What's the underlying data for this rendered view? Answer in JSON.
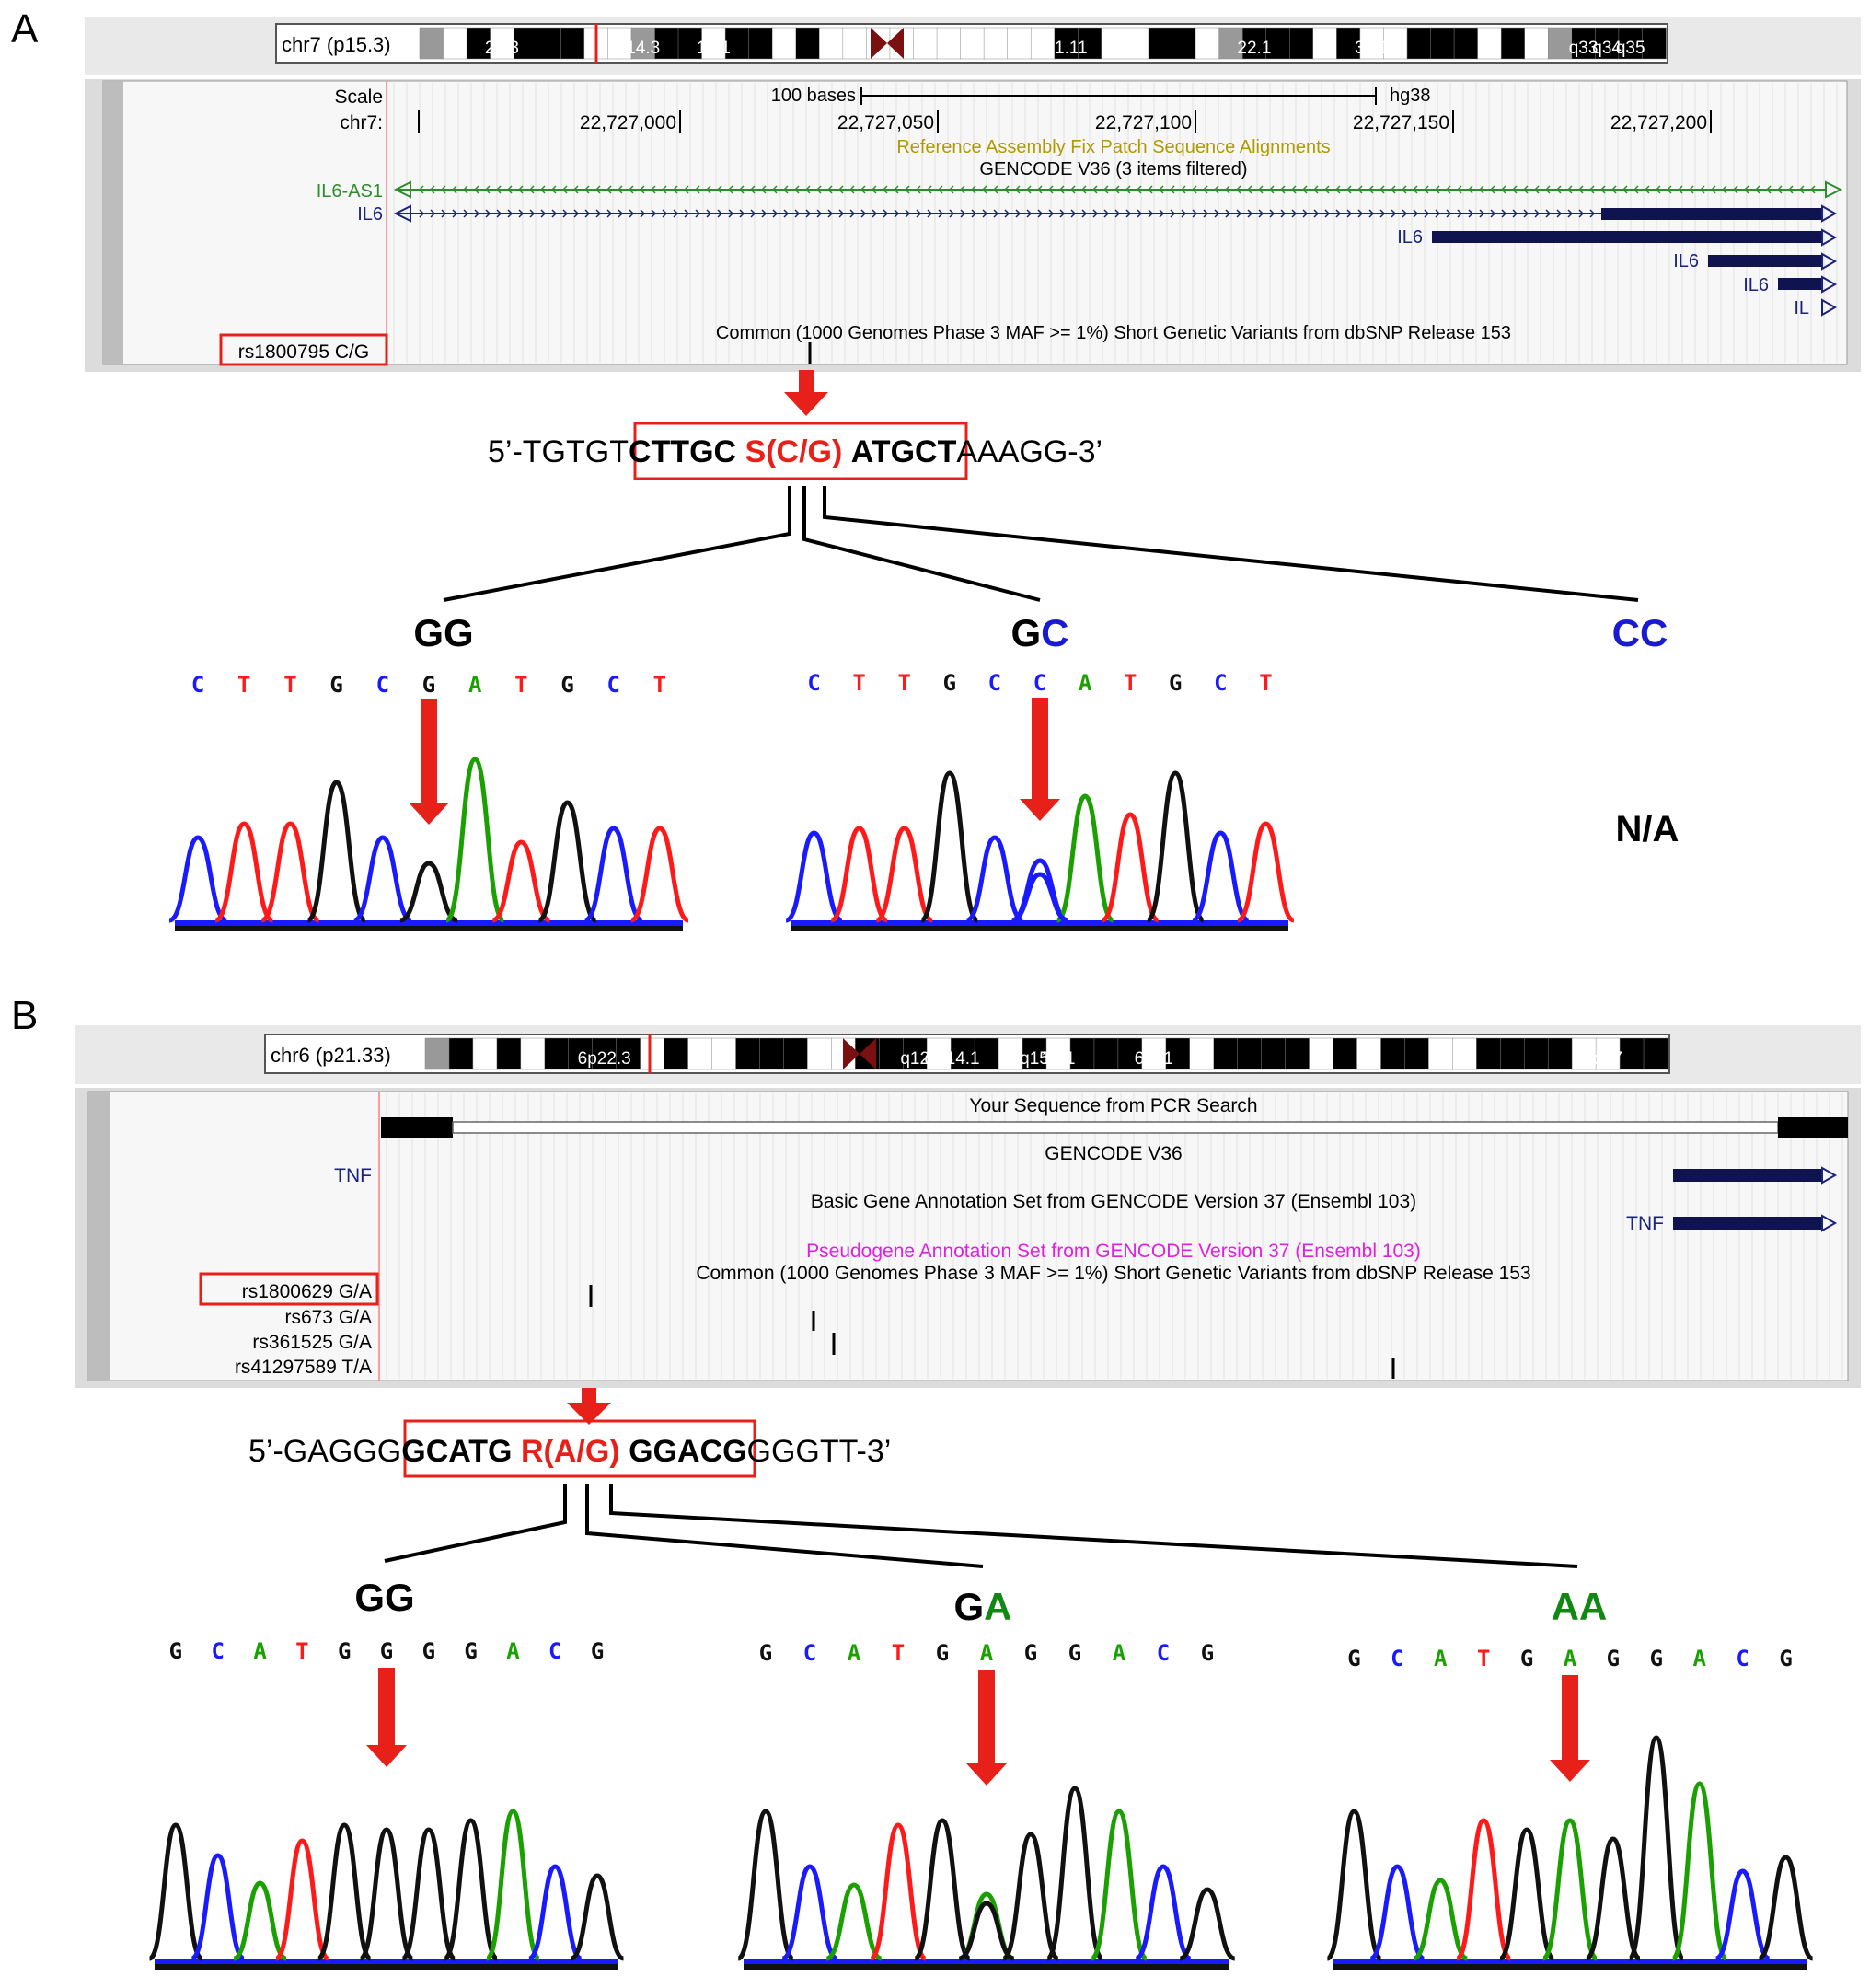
{
  "panels": [
    {
      "letter": "A",
      "ideogram": {
        "label": "chr7 (p15.3)",
        "bands": [
          "21.3",
          "14.3",
          "14.1",
          "21.11",
          "22.1",
          "31.1",
          "q33",
          "q34",
          "q35"
        ]
      },
      "tracks": {
        "scale_label": "Scale",
        "scale_bar": "100 bases",
        "assembly": "hg38",
        "chrom_label": "chr7:",
        "positions": [
          "22,727,000",
          "22,727,050",
          "22,727,100",
          "22,727,150",
          "22,727,200"
        ],
        "fix_patch": "Reference Assembly Fix Patch Sequence Alignments",
        "gencode": "GENCODE V36 (3 items filtered)",
        "genes": [
          "IL6-AS1",
          "IL6",
          "IL6",
          "IL6",
          "IL6",
          "IL"
        ],
        "dbsnp": "Common (1000 Genomes Phase 3 MAF >= 1%) Short Genetic Variants from dbSNP Release 153",
        "snp_label": "rs1800795 C/G"
      },
      "sequence": {
        "prefix": "5’-TGTGT",
        "left": "CTTGC",
        "snp": "S(C/G)",
        "right": "ATGCT",
        "suffix": "AAAGG-3’"
      },
      "genotypes": [
        {
          "label_first": "GG",
          "label_second": "",
          "bases": [
            "C",
            "T",
            "T",
            "G",
            "C",
            "G",
            "A",
            "T",
            "G",
            "C",
            "T"
          ]
        },
        {
          "label_first": "G",
          "label_second": "C",
          "bases": [
            "C",
            "T",
            "T",
            "G",
            "C",
            "C",
            "A",
            "T",
            "G",
            "C",
            "T"
          ]
        },
        {
          "label_first": "",
          "label_second": "CC",
          "bases": [],
          "na": "N/A"
        }
      ]
    },
    {
      "letter": "B",
      "ideogram": {
        "label": "chr6 (p21.33)",
        "bands": [
          "6p22.3",
          "q12",
          "q13",
          "14.1",
          "q15",
          "16.1",
          "6q21",
          "26",
          "q27"
        ]
      },
      "tracks": {
        "pcr": "Your Sequence from PCR Search",
        "gencode": "GENCODE V36",
        "genes": [
          "TNF",
          "TNF"
        ],
        "basic": "Basic Gene Annotation Set from GENCODE Version 37 (Ensembl 103)",
        "pseudo": "Pseudogene Annotation Set from GENCODE Version 37 (Ensembl 103)",
        "dbsnp": "Common (1000 Genomes Phase 3 MAF >= 1%) Short Genetic Variants from dbSNP Release 153",
        "snps": [
          "rs1800629 G/A",
          "rs673 G/A",
          "rs361525 G/A",
          "rs41297589 T/A"
        ]
      },
      "sequence": {
        "prefix": "5’-GAGGG",
        "left": "GCATG",
        "snp": "R(A/G)",
        "right": "GGACG",
        "suffix": "GGGTT-3’"
      },
      "genotypes": [
        {
          "label_first": "GG",
          "label_second": "",
          "bases": [
            "G",
            "C",
            "A",
            "T",
            "G",
            "G",
            "G",
            "G",
            "A",
            "C",
            "G"
          ]
        },
        {
          "label_first": "G",
          "label_second": "A",
          "bases": [
            "G",
            "C",
            "A",
            "T",
            "G",
            "A",
            "G",
            "G",
            "A",
            "C",
            "G"
          ]
        },
        {
          "label_first": "",
          "label_second": "AA",
          "bases": [
            "G",
            "C",
            "A",
            "T",
            "G",
            "A",
            "G",
            "G",
            "A",
            "C",
            "G"
          ]
        }
      ]
    }
  ],
  "colors": {
    "A": "#1aa000",
    "C": "#1a1aff",
    "G": "#111111",
    "T": "#ff1a1a",
    "highlight": "#e8201a",
    "navy": "#0f1450",
    "green_gene": "#2e8b2e",
    "blue_gene": "#1a237e",
    "gold": "#b09a00",
    "magenta": "#e020e0",
    "genotype_C": "#1a1ad0",
    "genotype_A": "#118811"
  }
}
